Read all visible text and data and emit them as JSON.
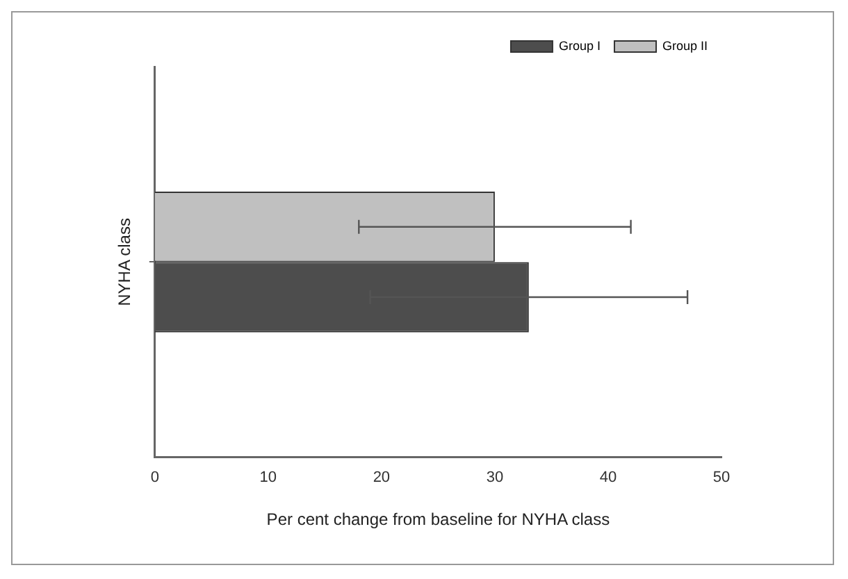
{
  "chart_data": {
    "type": "bar",
    "orientation": "horizontal",
    "xlabel": "Per cent change from baseline for NYHA class",
    "ylabel": "NYHA class",
    "categories": [
      null
    ],
    "series": [
      {
        "name": "Group I",
        "color": "#4d4d4d",
        "values": [
          33
        ],
        "errors": [
          14
        ]
      },
      {
        "name": "Group II",
        "color": "#c0c0c0",
        "values": [
          30
        ],
        "errors": [
          12
        ]
      }
    ],
    "xlim": [
      0,
      50
    ],
    "xticks": [
      0,
      10,
      20,
      30,
      40,
      50
    ],
    "grid": false,
    "legend": "top right"
  }
}
